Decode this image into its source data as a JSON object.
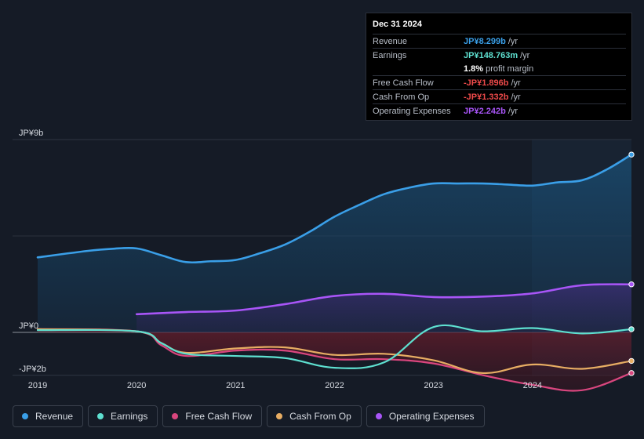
{
  "tooltip": {
    "date": "Dec 31 2024",
    "rows": [
      {
        "label": "Revenue",
        "value": "JP¥8.299b",
        "unit": "/yr",
        "color": "#3a9fe8"
      },
      {
        "label": "Earnings",
        "value": "JP¥148.763m",
        "unit": "/yr",
        "color": "#5ee0d0"
      },
      {
        "label": "",
        "value": "1.8%",
        "unit": "profit margin",
        "color": "#ffffff"
      },
      {
        "label": "Free Cash Flow",
        "value": "-JP¥1.896b",
        "unit": "/yr",
        "color": "#ee4a4a"
      },
      {
        "label": "Cash From Op",
        "value": "-JP¥1.332b",
        "unit": "/yr",
        "color": "#ee4a4a"
      },
      {
        "label": "Operating Expenses",
        "value": "JP¥2.242b",
        "unit": "/yr",
        "color": "#a855f7"
      }
    ]
  },
  "legend": [
    {
      "label": "Revenue",
      "color": "#3a9fe8"
    },
    {
      "label": "Earnings",
      "color": "#5ee0d0"
    },
    {
      "label": "Free Cash Flow",
      "color": "#d9467e"
    },
    {
      "label": "Cash From Op",
      "color": "#e7ad63"
    },
    {
      "label": "Operating Expenses",
      "color": "#a855f7"
    }
  ],
  "chart_data": {
    "type": "area",
    "title": "",
    "xlabel": "",
    "ylabel": "",
    "y_tick_labels": [
      "JP¥9b",
      "JP¥0",
      "-JP¥2b"
    ],
    "x_tick_labels": [
      "2019",
      "2020",
      "2021",
      "2022",
      "2023",
      "2024"
    ],
    "ylim": [
      -2,
      9
    ],
    "xlim": [
      2019,
      2025
    ],
    "series": [
      {
        "name": "Revenue",
        "color": "#3a9fe8",
        "x": [
          2019,
          2019.5,
          2019.75,
          2020,
          2020.25,
          2020.5,
          2020.75,
          2021,
          2021.25,
          2021.5,
          2021.75,
          2022,
          2022.25,
          2022.5,
          2022.75,
          2023,
          2023.25,
          2023.5,
          2023.75,
          2024,
          2024.25,
          2024.5,
          2024.75,
          2025
        ],
        "values": [
          3.5,
          3.8,
          3.9,
          3.92,
          3.6,
          3.28,
          3.32,
          3.38,
          3.7,
          4.1,
          4.7,
          5.4,
          5.95,
          6.45,
          6.75,
          6.95,
          6.95,
          6.95,
          6.9,
          6.85,
          7.0,
          7.1,
          7.6,
          8.299
        ]
      },
      {
        "name": "Operating Expenses",
        "color": "#a855f7",
        "x": [
          2020,
          2020.5,
          2021,
          2021.5,
          2022,
          2022.5,
          2023,
          2023.5,
          2024,
          2024.5,
          2025
        ],
        "values": [
          0.85,
          0.95,
          1.02,
          1.32,
          1.7,
          1.8,
          1.65,
          1.67,
          1.82,
          2.2,
          2.242
        ]
      },
      {
        "name": "Earnings",
        "color": "#5ee0d0",
        "x": [
          2019,
          2020,
          2020.25,
          2020.5,
          2021,
          2021.5,
          2022,
          2022.5,
          2023,
          2023.5,
          2024,
          2024.5,
          2025
        ],
        "values": [
          0.1,
          0.05,
          -0.5,
          -1.0,
          -1.1,
          -1.2,
          -1.65,
          -1.4,
          0.25,
          0.05,
          0.2,
          -0.05,
          0.149
        ]
      },
      {
        "name": "Free Cash Flow",
        "color": "#d9467e",
        "x": [
          2019,
          2020,
          2020.25,
          2020.5,
          2021,
          2021.5,
          2022,
          2022.5,
          2023,
          2023.5,
          2024,
          2024.5,
          2025
        ],
        "values": [
          0.15,
          0.05,
          -0.6,
          -1.1,
          -0.85,
          -0.85,
          -1.25,
          -1.25,
          -1.45,
          -2.0,
          -2.45,
          -2.7,
          -1.896
        ]
      },
      {
        "name": "Cash From Op",
        "color": "#e7ad63",
        "x": [
          2019,
          2020,
          2020.25,
          2020.5,
          2021,
          2021.5,
          2022,
          2022.5,
          2023,
          2023.5,
          2024,
          2024.5,
          2025
        ],
        "values": [
          0.15,
          0.05,
          -0.5,
          -0.95,
          -0.75,
          -0.7,
          -1.05,
          -1.0,
          -1.3,
          -1.9,
          -1.5,
          -1.7,
          -1.332
        ]
      }
    ]
  }
}
